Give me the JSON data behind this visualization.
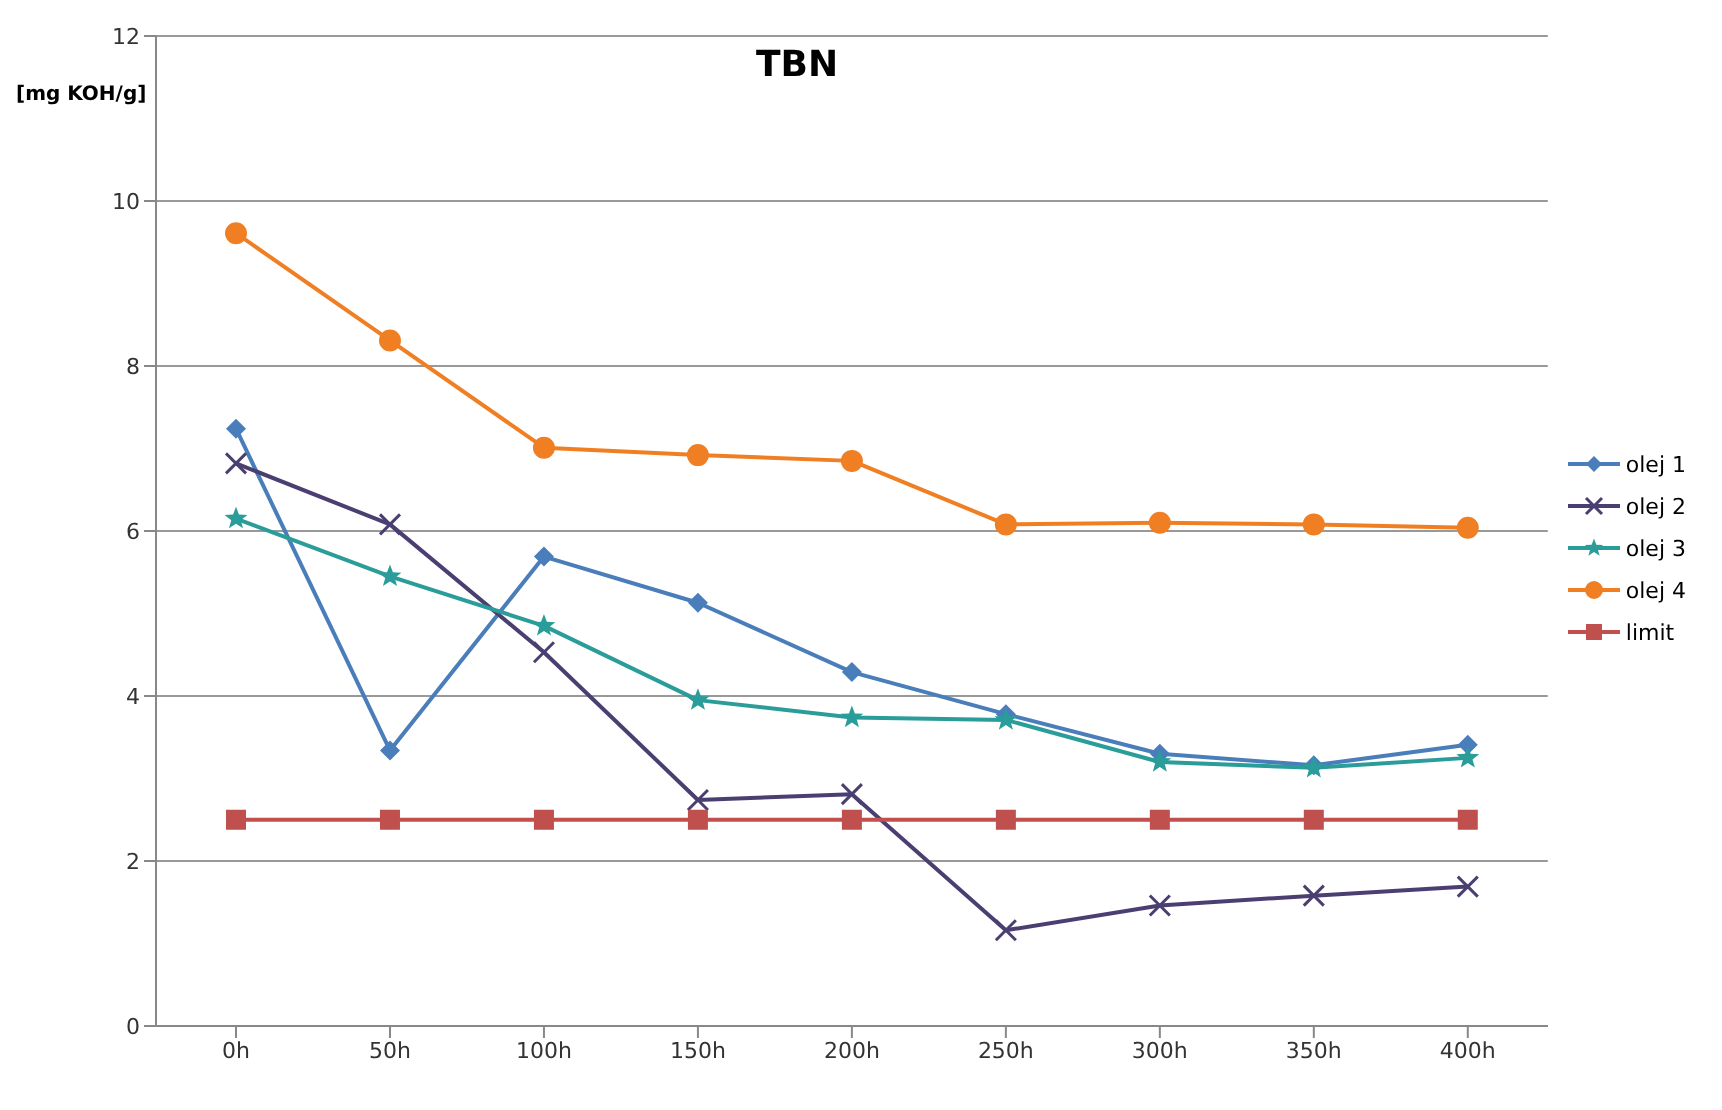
{
  "chart_data": {
    "type": "line",
    "title": "TBN",
    "ylabel": "[mg KOH/g]",
    "categories": [
      "0h",
      "50h",
      "100h",
      "150h",
      "200h",
      "250h",
      "300h",
      "350h",
      "400h"
    ],
    "series": [
      {
        "name": "olej 1",
        "color": "#4a7ebb",
        "marker": "diamond",
        "values": [
          7.24,
          3.34,
          5.69,
          5.13,
          4.29,
          3.78,
          3.3,
          3.16,
          3.41
        ]
      },
      {
        "name": "olej 2",
        "color": "#4b3f72",
        "marker": "cross",
        "values": [
          6.82,
          6.08,
          4.53,
          2.74,
          2.81,
          1.16,
          1.46,
          1.58,
          1.69
        ]
      },
      {
        "name": "olej 3",
        "color": "#2a9d9a",
        "marker": "star",
        "values": [
          6.15,
          5.45,
          4.85,
          3.95,
          3.74,
          3.71,
          3.2,
          3.13,
          3.25
        ]
      },
      {
        "name": "olej 4",
        "color": "#f07f24",
        "marker": "circle",
        "values": [
          9.61,
          8.31,
          7.01,
          6.92,
          6.85,
          6.08,
          6.1,
          6.08,
          6.04
        ]
      },
      {
        "name": "limit",
        "color": "#c0504d",
        "marker": "square",
        "values": [
          2.5,
          2.5,
          2.5,
          2.5,
          2.5,
          2.5,
          2.5,
          2.5,
          2.5
        ]
      }
    ],
    "ylim": [
      0,
      12
    ],
    "yticks": [
      0,
      2,
      4,
      6,
      8,
      10,
      12
    ],
    "grid": "y",
    "legend": "right"
  }
}
